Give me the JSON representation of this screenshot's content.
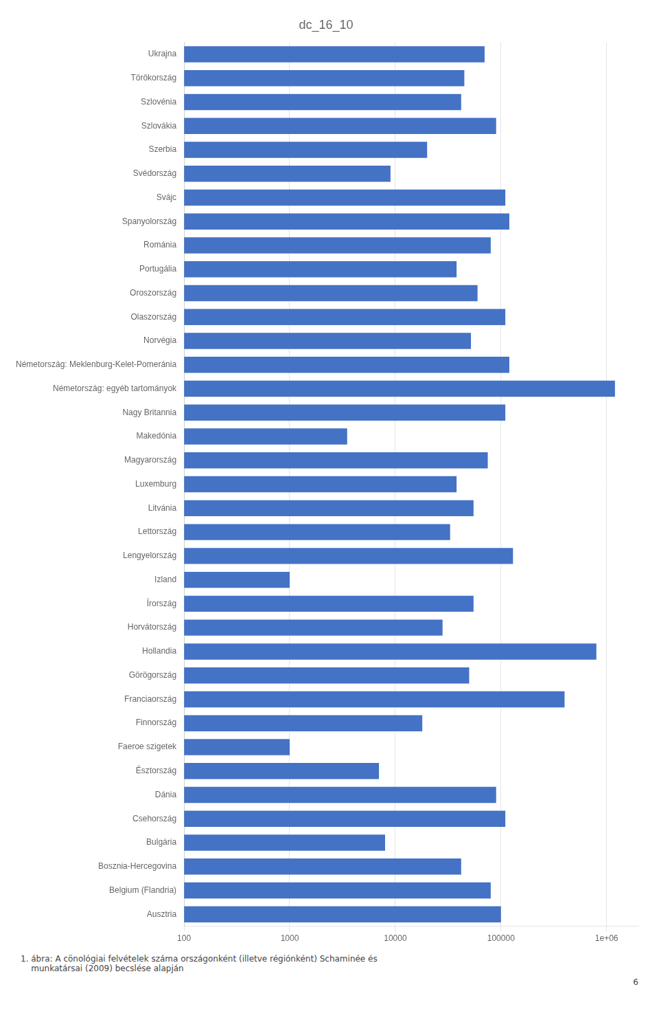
{
  "chart_data": {
    "type": "bar",
    "orientation": "horizontal",
    "title": "dc_16_10",
    "categories": [
      "Ukrajna",
      "Törökország",
      "Szlovénia",
      "Szlovákia",
      "Szerbia",
      "Svédország",
      "Svájc",
      "Spanyolország",
      "Románia",
      "Portugália",
      "Oroszország",
      "Olaszország",
      "Norvégia",
      "Németország: Meklenburg-Kelet-Pomeránia",
      "Németország: egyéb tartományok",
      "Nagy Britannia",
      "Makedónia",
      "Magyarország",
      "Luxemburg",
      "Litvánia",
      "Lettország",
      "Lengyelország",
      "Izland",
      "Írország",
      "Horvátország",
      "Hollandia",
      "Görögország",
      "Franciaország",
      "Finnország",
      "Faeroe szigetek",
      "Észtország",
      "Dánia",
      "Csehország",
      "Bulgária",
      "Bosznia-Hercegovina",
      "Belgium (Flandria)",
      "Ausztria"
    ],
    "values": [
      70000,
      45000,
      42000,
      90000,
      20000,
      9000,
      110000,
      120000,
      80000,
      38000,
      60000,
      110000,
      52000,
      120000,
      1200000,
      110000,
      3500,
      75000,
      38000,
      55000,
      33000,
      130000,
      1000,
      55000,
      28000,
      800000,
      50000,
      400000,
      18000,
      1000,
      7000,
      90000,
      110000,
      8000,
      42000,
      80000,
      100000
    ],
    "color": "#4472C4",
    "log": "x",
    "xlim": [
      100,
      2000000
    ],
    "xticks": [
      100,
      1000,
      10000,
      100000,
      {
        "value": 1000000,
        "label": "1e+06"
      }
    ],
    "grid": true,
    "annotations": [
      "1. ábra: A cönológiai felvételek száma országonként (illetve régiónként) Schaminée és\n    munkatársai (2009) becslése alapján",
      "6"
    ]
  }
}
